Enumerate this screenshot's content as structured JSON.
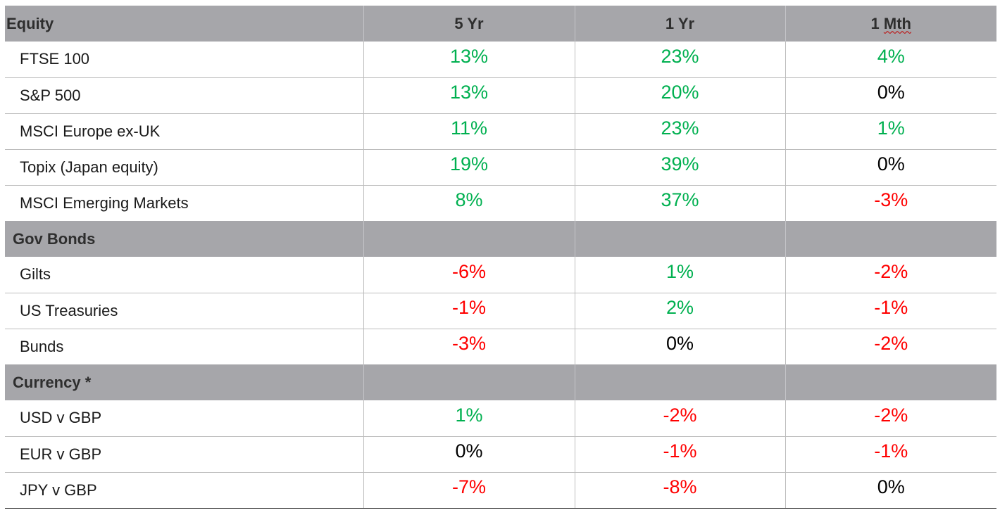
{
  "columns": {
    "section_first": "Equity",
    "five_yr": "5 Yr",
    "one_yr": "1 Yr",
    "one_mth_prefix": "1 ",
    "one_mth_word": "Mth"
  },
  "colors": {
    "positive": "#00b050",
    "negative": "#ff0000",
    "neutral": "#000000",
    "header_bg": "#a6a6aa"
  },
  "equity": [
    {
      "name": "FTSE 100",
      "five_yr": "13%",
      "one_yr": "23%",
      "one_mth": "4%"
    },
    {
      "name": "S&P 500",
      "five_yr": "13%",
      "one_yr": "20%",
      "one_mth": "0%"
    },
    {
      "name": "MSCI Europe ex-UK",
      "five_yr": "11%",
      "one_yr": "23%",
      "one_mth": "1%"
    },
    {
      "name": "Topix (Japan equity)",
      "five_yr": "19%",
      "one_yr": "39%",
      "one_mth": "0%"
    },
    {
      "name": "MSCI Emerging Markets",
      "five_yr": "8%",
      "one_yr": "37%",
      "one_mth": "-3%"
    }
  ],
  "gov_bonds": {
    "title": "Gov Bonds",
    "rows": [
      {
        "name": "Gilts",
        "five_yr": "-6%",
        "one_yr": "1%",
        "one_mth": "-2%"
      },
      {
        "name": "US Treasuries",
        "five_yr": "-1%",
        "one_yr": "2%",
        "one_mth": "-1%"
      },
      {
        "name": "Bunds",
        "five_yr": "-3%",
        "one_yr": "0%",
        "one_mth": "-2%"
      }
    ]
  },
  "currency": {
    "title": "Currency *",
    "rows": [
      {
        "name": "USD v GBP",
        "five_yr": "1%",
        "one_yr": "-2%",
        "one_mth": "-2%"
      },
      {
        "name": "EUR v GBP",
        "five_yr": "0%",
        "one_yr": "-1%",
        "one_mth": "-1%"
      },
      {
        "name": "JPY v GBP",
        "five_yr": "-7%",
        "one_yr": "-8%",
        "one_mth": "0%"
      }
    ]
  }
}
